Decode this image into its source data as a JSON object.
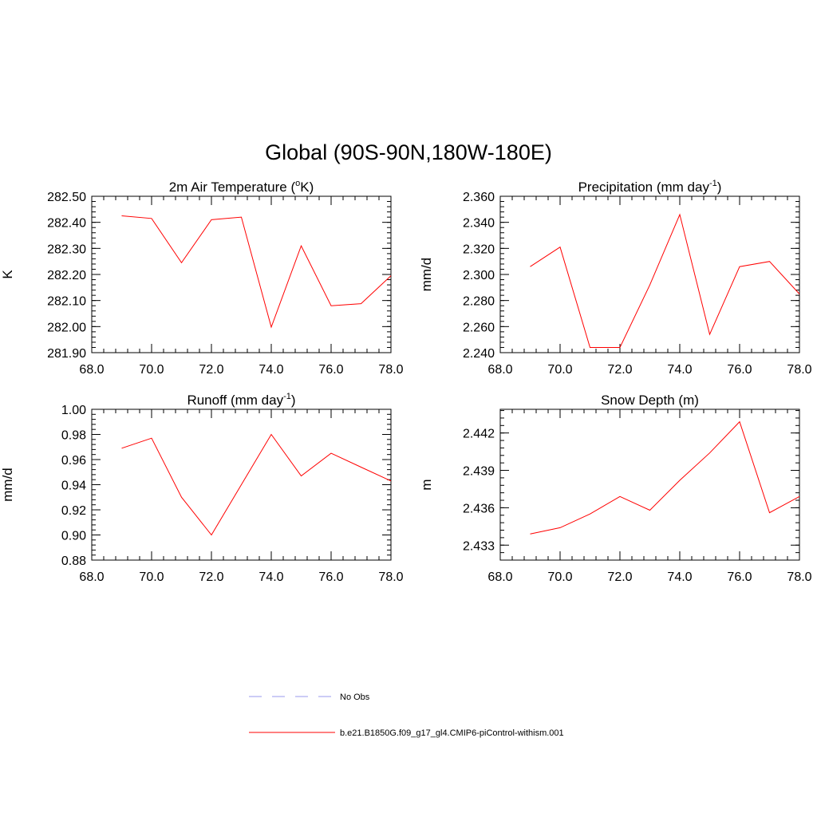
{
  "main_title": "Global (90S-90N,180W-180E)",
  "chart_data": [
    {
      "type": "line",
      "title": "2m Air Temperature (°K)",
      "title_parts": {
        "before": "2m Air Temperature (",
        "sup": "o",
        "after": "K)"
      },
      "ylabel": "K",
      "xlim": [
        68,
        78
      ],
      "ylim": [
        281.9,
        282.5
      ],
      "xticks": [
        "68.0",
        "70.0",
        "72.0",
        "74.0",
        "76.0",
        "78.0"
      ],
      "yticks": [
        "281.90",
        "282.00",
        "282.10",
        "282.20",
        "282.30",
        "282.40",
        "282.50"
      ],
      "series": [
        {
          "x": [
            69,
            70,
            71,
            72,
            73,
            74,
            75,
            76,
            77,
            78
          ],
          "values": [
            282.425,
            282.415,
            282.245,
            282.41,
            282.42,
            281.998,
            282.31,
            282.08,
            282.088,
            282.195
          ]
        }
      ]
    },
    {
      "type": "line",
      "title": "Precipitation (mm day-1)",
      "title_parts": {
        "before": "Precipitation (mm day",
        "sup": "-1",
        "after": ")"
      },
      "ylabel": "mm/d",
      "xlim": [
        68,
        78
      ],
      "ylim": [
        2.24,
        2.36
      ],
      "xticks": [
        "68.0",
        "70.0",
        "72.0",
        "74.0",
        "76.0",
        "78.0"
      ],
      "yticks": [
        "2.240",
        "2.260",
        "2.280",
        "2.300",
        "2.320",
        "2.340",
        "2.360"
      ],
      "series": [
        {
          "x": [
            69,
            70,
            71,
            72,
            73,
            74,
            75,
            76,
            77,
            78
          ],
          "values": [
            2.306,
            2.321,
            2.244,
            2.244,
            2.292,
            2.346,
            2.254,
            2.306,
            2.31,
            2.285
          ]
        }
      ]
    },
    {
      "type": "line",
      "title": "Runoff (mm day-1)",
      "title_parts": {
        "before": "Runoff (mm day",
        "sup": "-1",
        "after": ")"
      },
      "ylabel": "mm/d",
      "xlim": [
        68,
        78
      ],
      "ylim": [
        0.88,
        1.0
      ],
      "xticks": [
        "68.0",
        "70.0",
        "72.0",
        "74.0",
        "76.0",
        "78.0"
      ],
      "yticks": [
        "0.88",
        "0.90",
        "0.92",
        "0.94",
        "0.96",
        "0.98",
        "1.00"
      ],
      "series": [
        {
          "x": [
            69,
            70,
            71,
            72,
            73,
            74,
            75,
            76,
            77,
            78
          ],
          "values": [
            0.969,
            0.977,
            0.93,
            0.9,
            0.94,
            0.98,
            0.947,
            0.965,
            0.954,
            0.943
          ]
        }
      ]
    },
    {
      "type": "line",
      "title": "Snow Depth (m)",
      "title_parts": {
        "before": "Snow Depth (m)",
        "sup": "",
        "after": ""
      },
      "ylabel": "m",
      "xlim": [
        68,
        78
      ],
      "ylim": [
        2.4318,
        2.4439
      ],
      "xticks": [
        "68.0",
        "70.0",
        "72.0",
        "74.0",
        "76.0",
        "78.0"
      ],
      "yticks": [
        "2.433",
        "2.436",
        "2.439",
        "2.442"
      ],
      "ytick_values": [
        2.433,
        2.436,
        2.439,
        2.442
      ],
      "series": [
        {
          "x": [
            69,
            70,
            71,
            72,
            73,
            74,
            75,
            76,
            77,
            78
          ],
          "values": [
            2.4339,
            2.4344,
            2.4355,
            2.4369,
            2.4358,
            2.4382,
            2.4404,
            2.4429,
            2.4356,
            2.4369
          ]
        }
      ]
    }
  ],
  "legend": [
    {
      "label": "No Obs",
      "color": "#9999ee",
      "dash": true
    },
    {
      "label": "b.e21.B1850G.f09_g17_gl4.CMIP6-piControl-withism.001",
      "color": "#ff0000",
      "dash": false
    }
  ]
}
